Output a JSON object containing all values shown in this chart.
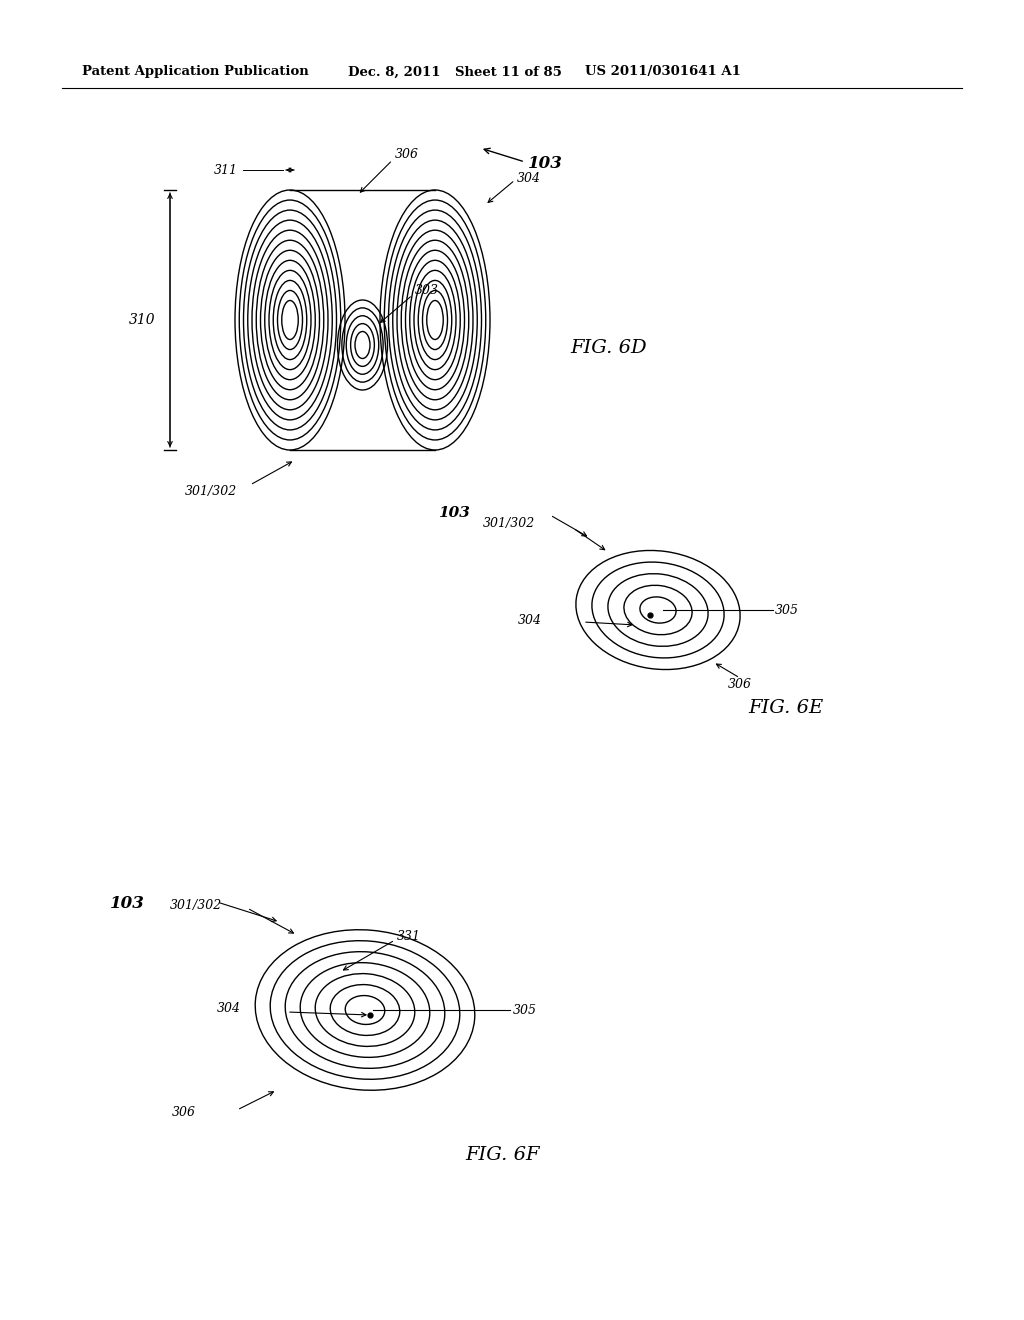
{
  "bg_color": "#ffffff",
  "header_text": "Patent Application Publication",
  "header_date": "Dec. 8, 2011",
  "header_sheet": "Sheet 11 of 85",
  "header_patent": "US 2011/0301641 A1",
  "fig6d_label": "FIG. 6D",
  "fig6e_label": "FIG. 6E",
  "fig6f_label": "FIG. 6F",
  "labels": {
    "103_6d": "103",
    "306_6d": "306",
    "304_6d": "304",
    "303_6d": "303",
    "311_6d": "311",
    "310_6d": "310",
    "301_302_6d": "301/302",
    "103_6e": "103",
    "301_302_6e": "301/302",
    "304_6e": "304",
    "305_6e": "305",
    "306_6e": "306",
    "103_6f": "103",
    "301_302_6f": "301/302",
    "304_6f": "304",
    "305_6f": "305",
    "306_6f": "306",
    "331_6f": "331"
  }
}
